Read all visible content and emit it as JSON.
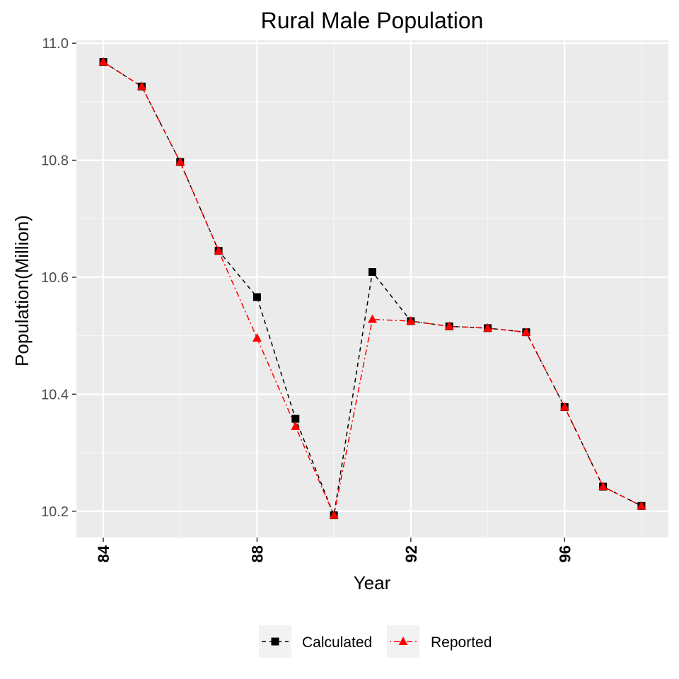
{
  "chart_data": {
    "type": "line",
    "title": "Rural Male Population",
    "xlabel": "Year",
    "ylabel": "Population(Million)",
    "xlim": [
      83.3,
      98.7
    ],
    "ylim": [
      10.155,
      11.005
    ],
    "x_ticks": [
      84,
      88,
      92,
      96
    ],
    "x_tick_labels": [
      "84",
      "88",
      "92",
      "96"
    ],
    "y_ticks": [
      10.2,
      10.4,
      10.6,
      10.8,
      11.0
    ],
    "y_tick_labels": [
      "10.2",
      "10.4",
      "10.6",
      "10.8",
      "11.0"
    ],
    "grid": true,
    "legend_position": "bottom",
    "x": [
      84,
      85,
      86,
      87,
      88,
      89,
      90,
      91,
      92,
      93,
      94,
      95,
      96,
      97,
      98
    ],
    "series": [
      {
        "name": "Calculated",
        "color": "#000000",
        "marker": "square",
        "line": "dashed",
        "values": [
          10.968,
          10.926,
          10.797,
          10.645,
          10.566,
          10.358,
          10.193,
          10.609,
          10.525,
          10.516,
          10.513,
          10.506,
          10.378,
          10.242,
          10.209
        ]
      },
      {
        "name": "Reported",
        "color": "#ff0000",
        "marker": "triangle",
        "line": "dotdash",
        "values": [
          10.968,
          10.926,
          10.797,
          10.645,
          10.496,
          10.345,
          10.193,
          10.528,
          10.525,
          10.516,
          10.513,
          10.506,
          10.378,
          10.242,
          10.209
        ]
      }
    ]
  }
}
